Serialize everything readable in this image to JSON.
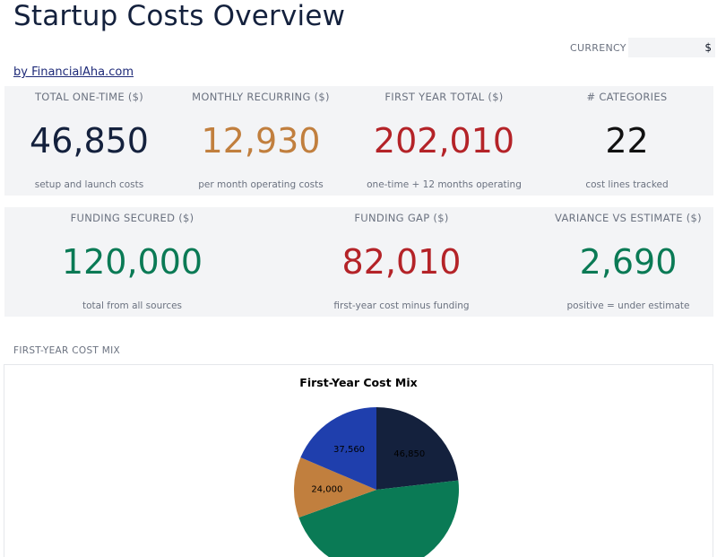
{
  "header": {
    "title": "Startup Costs Overview",
    "byline": "by FinancialAha.com",
    "currency_label": "CURRENCY",
    "currency_value": "$"
  },
  "kpis_row1": [
    {
      "label": "TOTAL ONE-TIME ($)",
      "value": "46,850",
      "sub": "setup and launch costs",
      "color": "#14213d"
    },
    {
      "label": "MONTHLY RECURRING ($)",
      "value": "12,930",
      "sub": "per month operating costs",
      "color": "#c17f3e"
    },
    {
      "label": "FIRST YEAR TOTAL ($)",
      "value": "202,010",
      "sub": "one-time + 12 months operating",
      "color": "#b42328"
    },
    {
      "label": "# CATEGORIES",
      "value": "22",
      "sub": "cost lines tracked",
      "color": "#111111"
    }
  ],
  "kpis_row2": [
    {
      "label": "FUNDING SECURED ($)",
      "value": "120,000",
      "sub": "total from all sources",
      "color": "#0a7a55"
    },
    {
      "label": "FUNDING GAP ($)",
      "value": "82,010",
      "sub": "first-year cost minus funding",
      "color": "#b42328"
    },
    {
      "label": "VARIANCE VS ESTIMATE ($)",
      "value": "2,690",
      "sub": "positive = under estimate",
      "color": "#0a7a55"
    }
  ],
  "section": {
    "label": "FIRST-YEAR COST MIX"
  },
  "chart_data": {
    "type": "pie",
    "title": "First-Year Cost Mix",
    "slices": [
      {
        "label": "46,850",
        "value": 46850,
        "color": "#14213d"
      },
      {
        "label": "",
        "value": 93600,
        "color": "#0a7a55"
      },
      {
        "label": "24,000",
        "value": 24000,
        "color": "#c17f3e"
      },
      {
        "label": "37,560",
        "value": 37560,
        "color": "#1f3fad"
      }
    ]
  }
}
